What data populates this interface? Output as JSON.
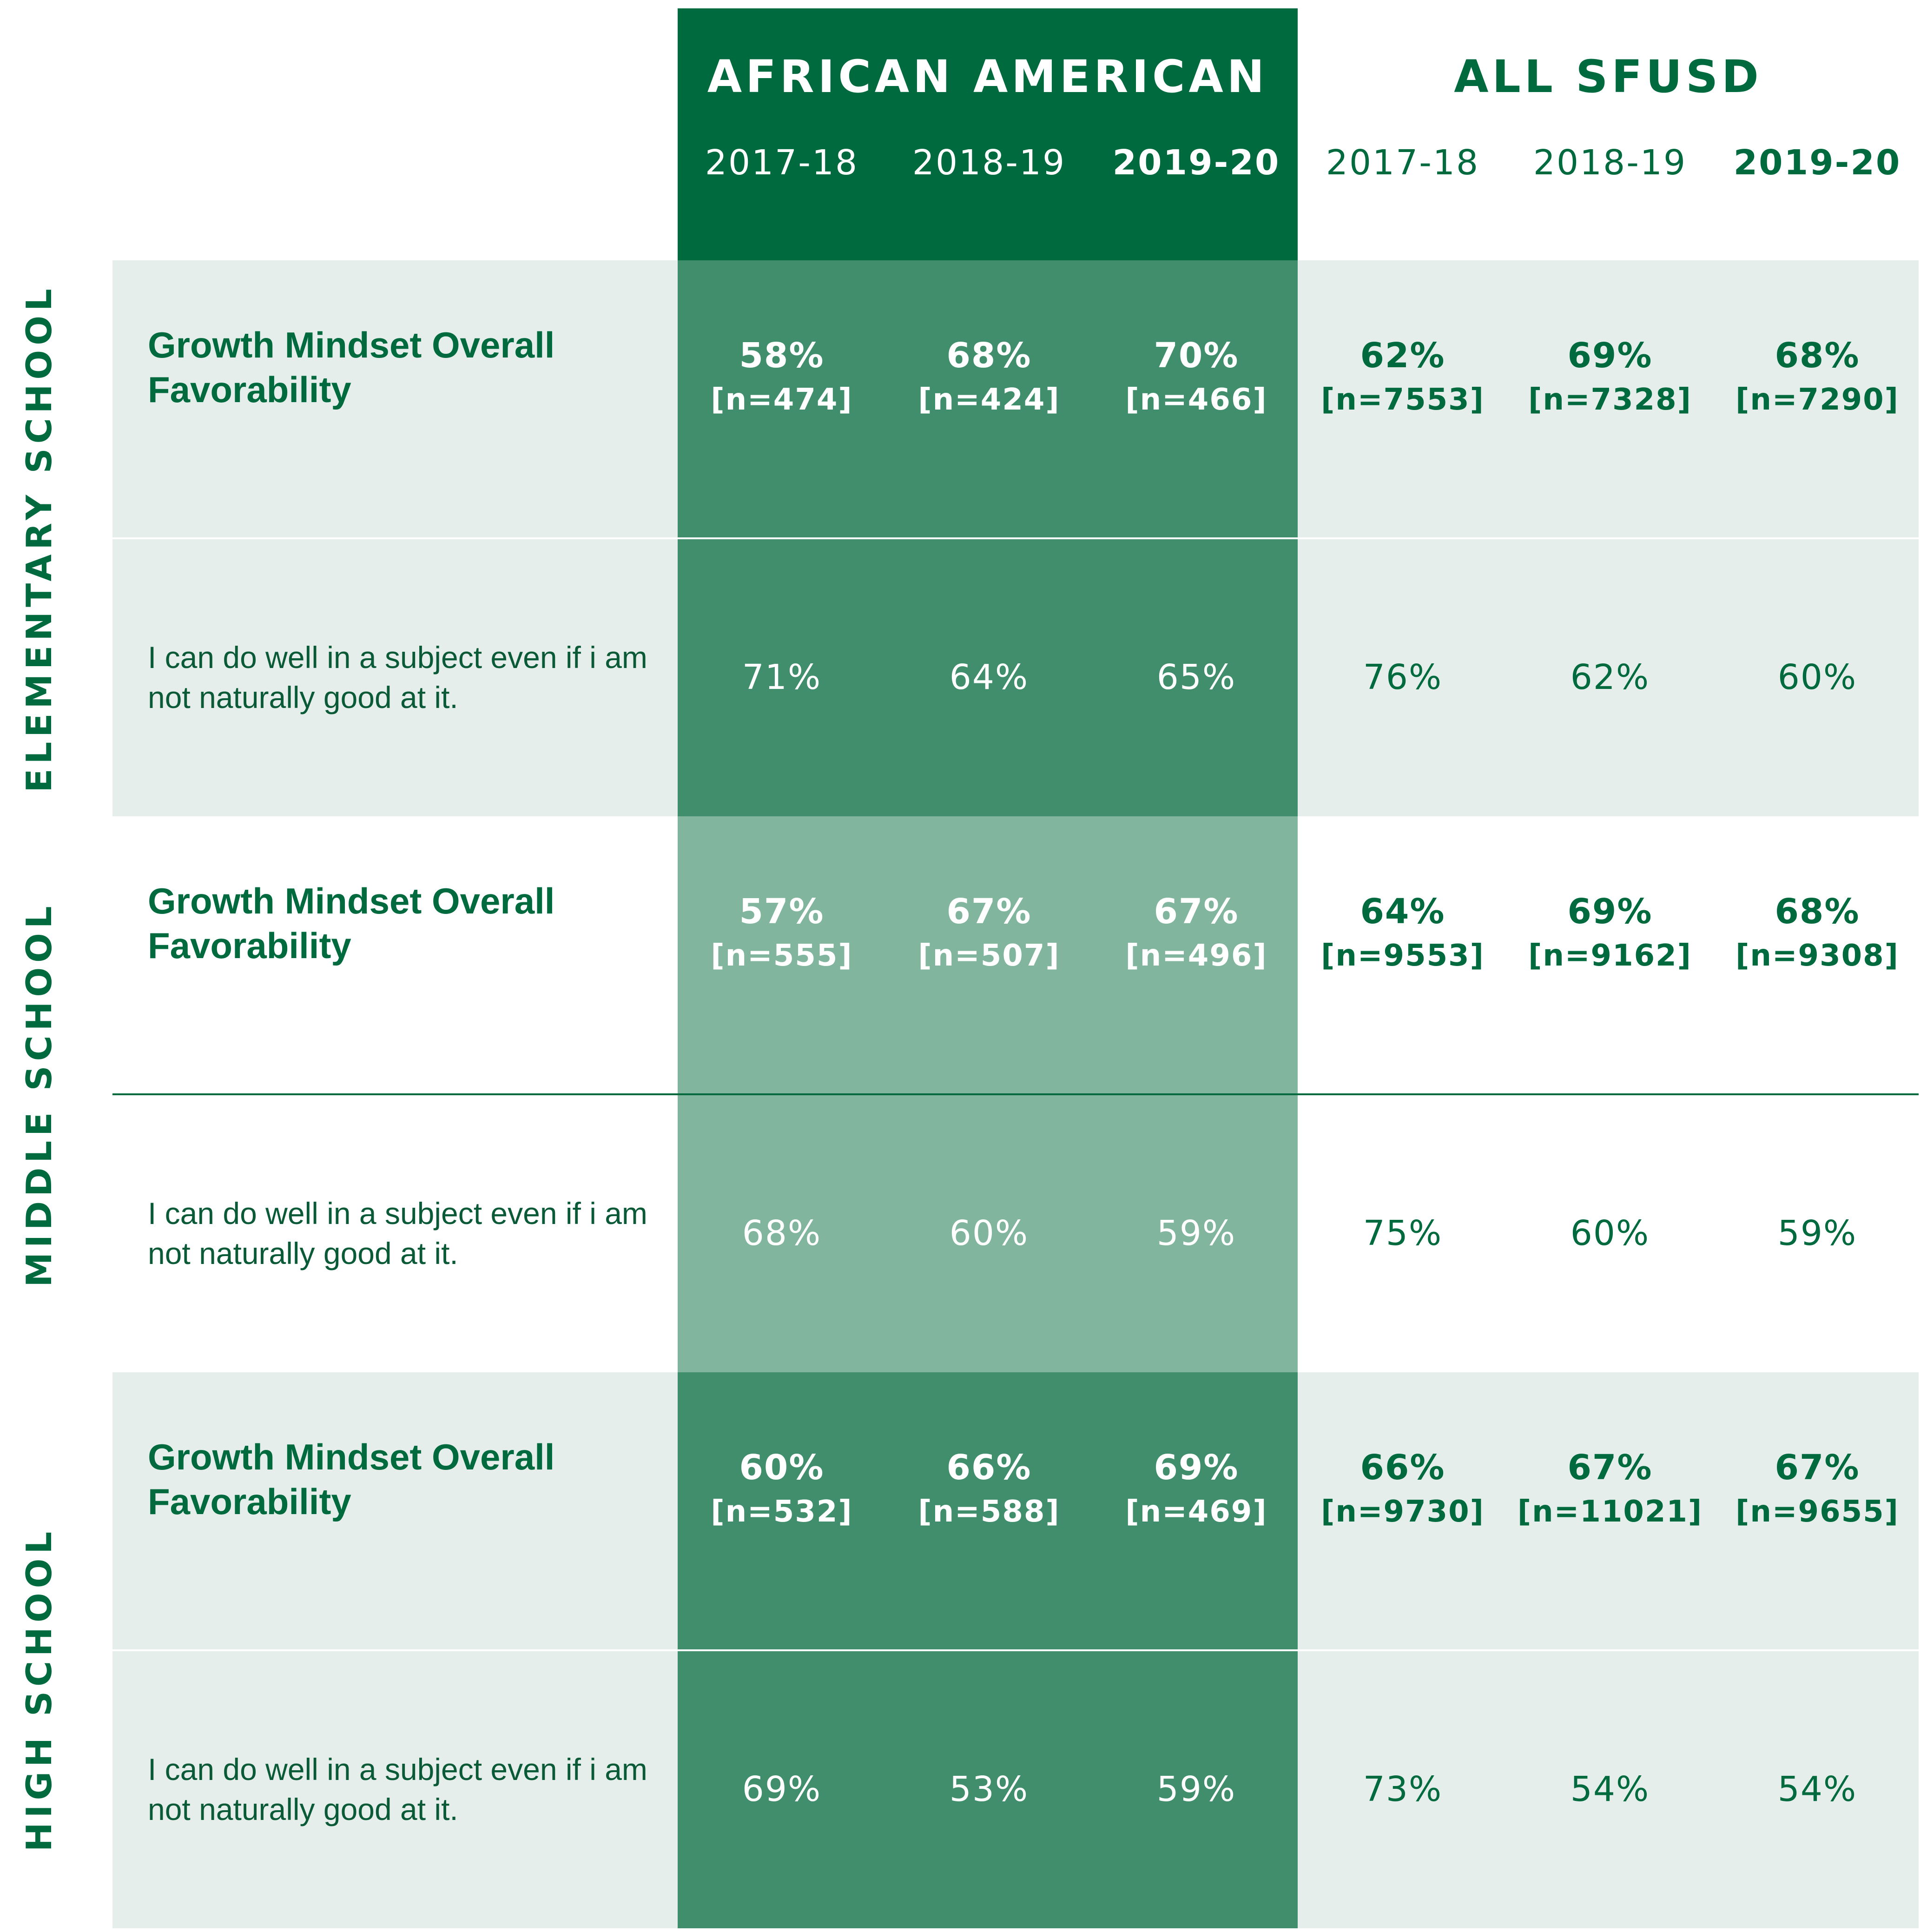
{
  "colors": {
    "brand_green": "#006a3f",
    "aa_dark": "#418e6d",
    "aa_light": "#82b59e",
    "band_light": "#e6eeeb",
    "white": "#ffffff"
  },
  "chart_data": {
    "type": "table",
    "groups": [
      "AFRICAN AMERICAN",
      "ALL SFUSD"
    ],
    "years": [
      {
        "label": "2017-18",
        "bold": false
      },
      {
        "label": "2018-19",
        "bold": false
      },
      {
        "label": "2019-20",
        "bold": true
      },
      {
        "label": "2017-18",
        "bold": false
      },
      {
        "label": "2018-19",
        "bold": false
      },
      {
        "label": "2019-20",
        "bold": true
      }
    ],
    "sections": [
      {
        "label": "ELEMENTARY SCHOOL",
        "rows": [
          {
            "label": "Growth Mindset Overall Favorability",
            "type": "main",
            "values": [
              "58%",
              "68%",
              "70%",
              "62%",
              "69%",
              "68%"
            ],
            "n": [
              "[n=474]",
              "[n=424]",
              "[n=466]",
              "[n=7553]",
              "[n=7328]",
              "[n=7290]"
            ]
          },
          {
            "label": "I can do well in a subject even if i am not naturally good at it.",
            "type": "item",
            "values": [
              "71%",
              "64%",
              "65%",
              "76%",
              "62%",
              "60%"
            ]
          }
        ]
      },
      {
        "label": "MIDDLE  SCHOOL",
        "rows": [
          {
            "label": "Growth Mindset Overall Favorability",
            "type": "main",
            "values": [
              "57%",
              "67%",
              "67%",
              "64%",
              "69%",
              "68%"
            ],
            "n": [
              "[n=555]",
              "[n=507]",
              "[n=496]",
              "[n=9553]",
              "[n=9162]",
              "[n=9308]"
            ]
          },
          {
            "label": "I can do well in a subject even if i am not naturally good at it.",
            "type": "item",
            "values": [
              "68%",
              "60%",
              "59%",
              "75%",
              "60%",
              "59%"
            ]
          }
        ]
      },
      {
        "label": "HIGH  SCHOOL",
        "rows": [
          {
            "label": "Growth Mindset Overall Favorability",
            "type": "main",
            "values": [
              "60%",
              "66%",
              "69%",
              "66%",
              "67%",
              "67%"
            ],
            "n": [
              "[n=532]",
              "[n=588]",
              "[n=469]",
              "[n=9730]",
              "[n=11021]",
              "[n=9655]"
            ]
          },
          {
            "label": "I can do well in a subject even if i am not naturally good at it.",
            "type": "item",
            "values": [
              "69%",
              "53%",
              "59%",
              "73%",
              "54%",
              "54%"
            ]
          }
        ]
      }
    ]
  }
}
